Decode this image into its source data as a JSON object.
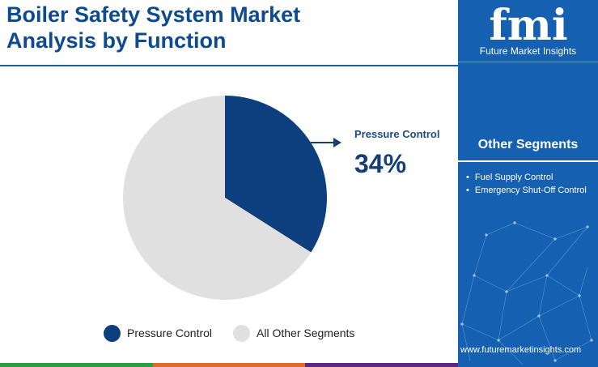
{
  "header": {
    "title_line1": "Boiler Safety System Market",
    "title_line2": "Analysis by Function"
  },
  "chart_data": {
    "type": "pie",
    "title": "Boiler Safety System Market Analysis by Function",
    "slices": [
      {
        "label": "Pressure Control",
        "value": 34,
        "color": "#0d3f7f"
      },
      {
        "label": "All Other Segments",
        "value": 66,
        "color": "#e0e0e0"
      }
    ],
    "callout": {
      "label": "Pressure Control",
      "value_text": "34%"
    },
    "legend_position": "bottom"
  },
  "legend": {
    "items": [
      {
        "label": "Pressure Control",
        "color": "#0d3f7f"
      },
      {
        "label": "All Other Segments",
        "color": "#e0e0e0"
      }
    ]
  },
  "sidebar": {
    "logo_mark": "fmi",
    "logo_text": "Future Market Insights",
    "other_segments_title": "Other Segments",
    "other_segments": [
      "Fuel Supply Control",
      "Emergency Shut-Off Control"
    ],
    "website": "www.futuremarketinsights.com"
  },
  "colors": {
    "title": "#0d4a8f",
    "sidebar_bg": "#1560b0",
    "bottom_bar": [
      "#2c9e47",
      "#e06a2c",
      "#5a2a82"
    ]
  },
  "icons": {
    "callout_arrow": "arrow-right-icon"
  }
}
